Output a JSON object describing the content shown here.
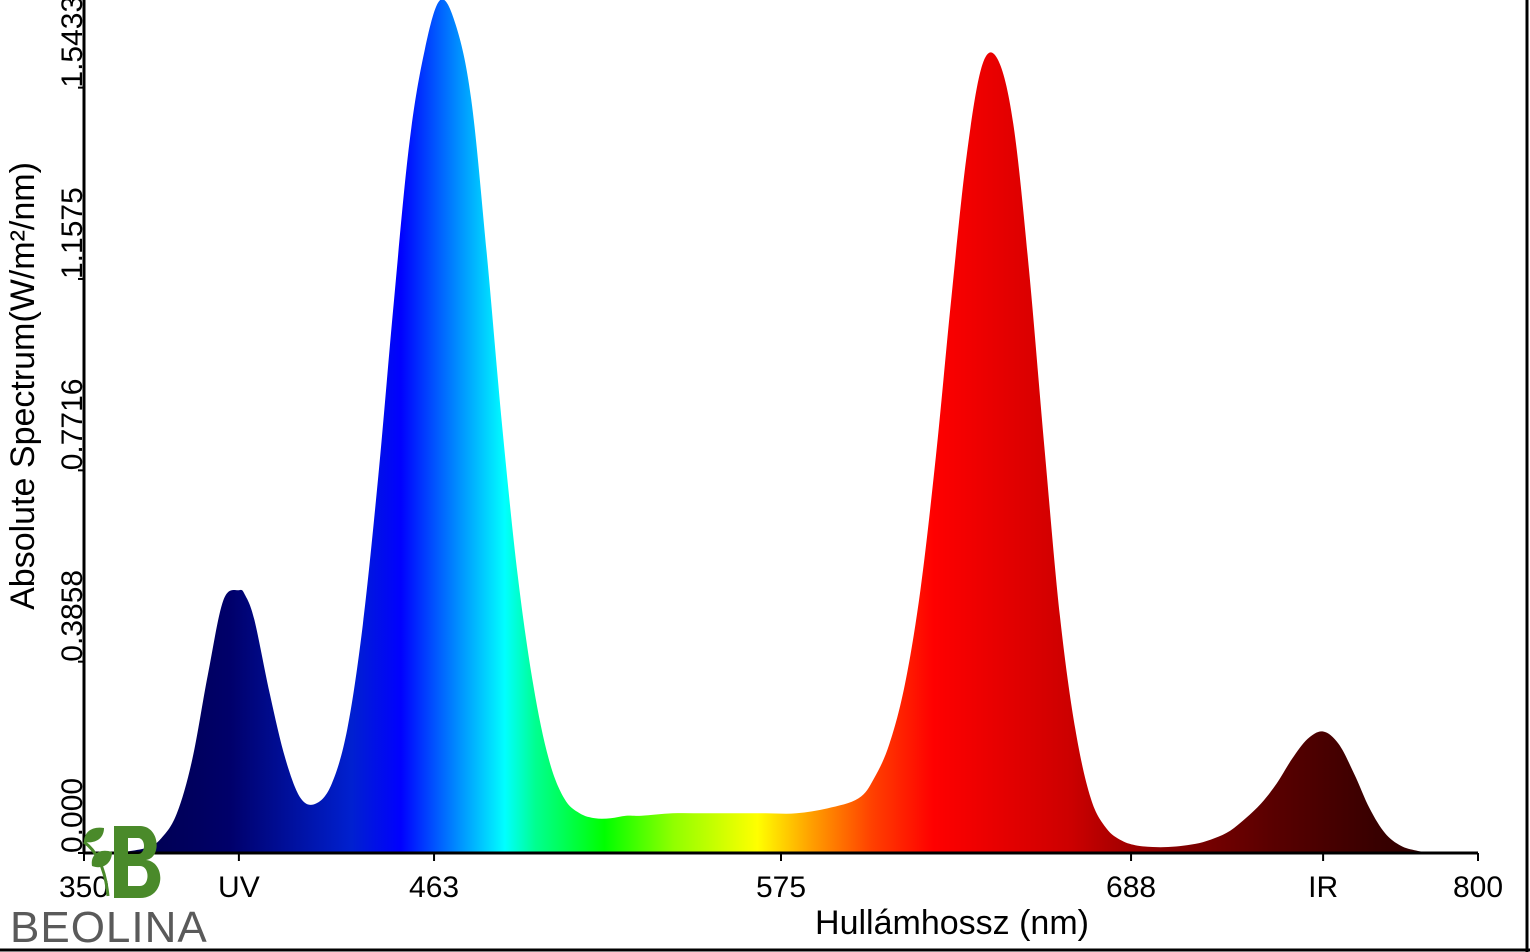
{
  "chart_data": {
    "type": "area",
    "title": "",
    "xlabel": "Hullámhossz (nm)",
    "ylabel": "Absolute Spectrum(W/m²/nm)",
    "xlim": [
      350,
      800
    ],
    "ylim": [
      0,
      1.72
    ],
    "grid": false,
    "legend": "none",
    "x_ticks": [
      {
        "value": 350,
        "label": "350"
      },
      {
        "value": 400,
        "label": "UV"
      },
      {
        "value": 463,
        "label": "463"
      },
      {
        "value": 575,
        "label": "575"
      },
      {
        "value": 688,
        "label": "688"
      },
      {
        "value": 750,
        "label": "IR"
      },
      {
        "value": 800,
        "label": "800"
      }
    ],
    "y_ticks": [
      {
        "value": 0,
        "label": "0.000"
      },
      {
        "value": 0.3858,
        "label": "0.3858"
      },
      {
        "value": 0.7716,
        "label": "0.7716"
      },
      {
        "value": 1.1575,
        "label": "1.1575"
      },
      {
        "value": 1.5433,
        "label": "1.5433"
      }
    ],
    "series": [
      {
        "x": [
          360,
          370,
          375,
          380,
          385,
          390,
          395,
          400,
          402,
          405,
          410,
          415,
          420,
          425,
          430,
          435,
          440,
          445,
          450,
          455,
          460,
          465,
          470,
          475,
          480,
          485,
          490,
          495,
          500,
          505,
          510,
          515,
          520,
          525,
          530,
          540,
          550,
          560,
          570,
          580,
          590,
          600,
          605,
          610,
          615,
          620,
          625,
          630,
          635,
          640,
          645,
          650,
          655,
          660,
          665,
          670,
          675,
          680,
          685,
          690,
          695,
          700,
          705,
          710,
          715,
          720,
          725,
          730,
          735,
          740,
          745,
          750,
          755,
          760,
          765,
          770,
          775,
          780,
          785
        ],
        "y": [
          0,
          0.01,
          0.03,
          0.08,
          0.19,
          0.36,
          0.51,
          0.53,
          0.52,
          0.47,
          0.32,
          0.19,
          0.11,
          0.1,
          0.14,
          0.25,
          0.46,
          0.76,
          1.11,
          1.43,
          1.62,
          1.72,
          1.67,
          1.52,
          1.21,
          0.86,
          0.56,
          0.34,
          0.19,
          0.11,
          0.08,
          0.07,
          0.07,
          0.075,
          0.075,
          0.08,
          0.08,
          0.08,
          0.08,
          0.08,
          0.09,
          0.11,
          0.15,
          0.22,
          0.34,
          0.53,
          0.8,
          1.12,
          1.41,
          1.59,
          1.6,
          1.47,
          1.18,
          0.82,
          0.48,
          0.25,
          0.11,
          0.05,
          0.025,
          0.015,
          0.012,
          0.012,
          0.015,
          0.02,
          0.03,
          0.045,
          0.07,
          0.1,
          0.14,
          0.19,
          0.23,
          0.245,
          0.22,
          0.16,
          0.09,
          0.04,
          0.015,
          0.005,
          0
        ]
      }
    ]
  },
  "logo": {
    "text": "BEOLINA",
    "brand_green": "#4a8a2a",
    "text_gray": "#5a5a5a"
  }
}
